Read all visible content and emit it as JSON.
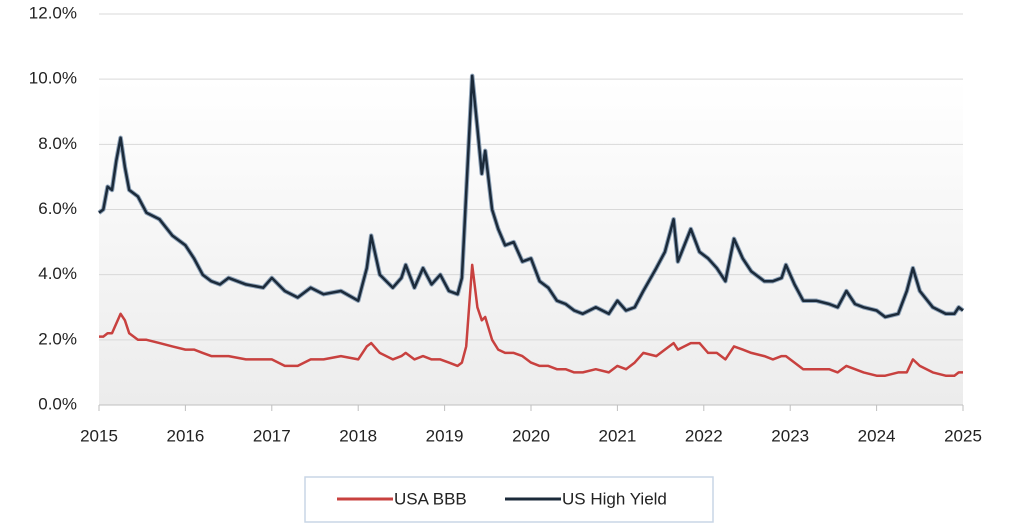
{
  "chart_data": {
    "type": "line",
    "x": [
      2015.0,
      2015.05,
      2015.1,
      2015.15,
      2015.2,
      2015.25,
      2015.3,
      2015.35,
      2015.45,
      2015.55,
      2015.7,
      2015.85,
      2016.0,
      2016.1,
      2016.2,
      2016.3,
      2016.4,
      2016.5,
      2016.7,
      2016.9,
      2017.0,
      2017.15,
      2017.3,
      2017.45,
      2017.6,
      2017.8,
      2018.0,
      2018.1,
      2018.15,
      2018.25,
      2018.4,
      2018.5,
      2018.55,
      2018.65,
      2018.75,
      2018.85,
      2018.95,
      2019.05,
      2019.15,
      2019.2,
      2019.25,
      2019.32,
      2019.38,
      2019.43,
      2019.47,
      2019.55,
      2019.62,
      2019.7,
      2019.8,
      2019.9,
      2020.0,
      2020.1,
      2020.2,
      2020.3,
      2020.4,
      2020.5,
      2020.6,
      2020.75,
      2020.9,
      2021.0,
      2021.1,
      2021.2,
      2021.3,
      2021.45,
      2021.55,
      2021.65,
      2021.7,
      2021.85,
      2021.95,
      2022.05,
      2022.15,
      2022.25,
      2022.35,
      2022.45,
      2022.55,
      2022.7,
      2022.8,
      2022.9,
      2022.95,
      2023.05,
      2023.15,
      2023.3,
      2023.45,
      2023.55,
      2023.65,
      2023.75,
      2023.85,
      2024.0,
      2024.1,
      2024.25,
      2024.35,
      2024.42,
      2024.5,
      2024.65,
      2024.8,
      2024.9,
      2024.95,
      2025.0
    ],
    "series": [
      {
        "name": "USA BBB",
        "color": "#c8413f",
        "values": [
          2.1,
          2.1,
          2.2,
          2.2,
          2.5,
          2.8,
          2.6,
          2.2,
          2.0,
          2.0,
          1.9,
          1.8,
          1.7,
          1.7,
          1.6,
          1.5,
          1.5,
          1.5,
          1.4,
          1.4,
          1.4,
          1.2,
          1.2,
          1.4,
          1.4,
          1.5,
          1.4,
          1.8,
          1.9,
          1.6,
          1.4,
          1.5,
          1.6,
          1.4,
          1.5,
          1.4,
          1.4,
          1.3,
          1.2,
          1.3,
          1.8,
          4.3,
          3.0,
          2.6,
          2.7,
          2.0,
          1.7,
          1.6,
          1.6,
          1.5,
          1.3,
          1.2,
          1.2,
          1.1,
          1.1,
          1.0,
          1.0,
          1.1,
          1.0,
          1.2,
          1.1,
          1.3,
          1.6,
          1.5,
          1.7,
          1.9,
          1.7,
          1.9,
          1.9,
          1.6,
          1.6,
          1.4,
          1.8,
          1.7,
          1.6,
          1.5,
          1.4,
          1.5,
          1.5,
          1.3,
          1.1,
          1.1,
          1.1,
          1.0,
          1.2,
          1.1,
          1.0,
          0.9,
          0.9,
          1.0,
          1.0,
          1.4,
          1.2,
          1.0,
          0.9,
          0.9,
          1.0,
          1.0
        ]
      },
      {
        "name": "US High Yield",
        "color": "#1b2a3a",
        "values": [
          5.9,
          6.0,
          6.7,
          6.6,
          7.5,
          8.2,
          7.3,
          6.6,
          6.4,
          5.9,
          5.7,
          5.2,
          4.9,
          4.5,
          4.0,
          3.8,
          3.7,
          3.9,
          3.7,
          3.6,
          3.9,
          3.5,
          3.3,
          3.6,
          3.4,
          3.5,
          3.2,
          4.2,
          5.2,
          4.0,
          3.6,
          3.9,
          4.3,
          3.6,
          4.2,
          3.7,
          4.0,
          3.5,
          3.4,
          3.9,
          6.5,
          10.1,
          8.5,
          7.1,
          7.8,
          6.0,
          5.4,
          4.9,
          5.0,
          4.4,
          4.5,
          3.8,
          3.6,
          3.2,
          3.1,
          2.9,
          2.8,
          3.0,
          2.8,
          3.2,
          2.9,
          3.0,
          3.5,
          4.2,
          4.7,
          5.7,
          4.4,
          5.4,
          4.7,
          4.5,
          4.2,
          3.8,
          5.1,
          4.5,
          4.1,
          3.8,
          3.8,
          3.9,
          4.3,
          3.7,
          3.2,
          3.2,
          3.1,
          3.0,
          3.5,
          3.1,
          3.0,
          2.9,
          2.7,
          2.8,
          3.5,
          4.2,
          3.5,
          3.0,
          2.8,
          2.8,
          3.0,
          2.9
        ]
      }
    ],
    "xlim": [
      2015,
      2025
    ],
    "xticks": [
      2015,
      2016,
      2017,
      2018,
      2019,
      2020,
      2021,
      2022,
      2023,
      2024,
      2025
    ],
    "ylim": [
      0,
      12
    ],
    "yticks": [
      {
        "value": 0,
        "label": "0.0%"
      },
      {
        "value": 2,
        "label": "2.0%"
      },
      {
        "value": 4,
        "label": "4.0%"
      },
      {
        "value": 6,
        "label": "6.0%"
      },
      {
        "value": 8,
        "label": "8.0%"
      },
      {
        "value": 10,
        "label": "10.0%"
      },
      {
        "value": 12,
        "label": "12.0%"
      }
    ],
    "grid": true,
    "legend": "bottom"
  }
}
